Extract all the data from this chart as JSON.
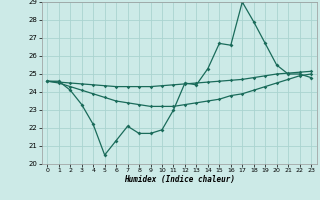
{
  "xlabel": "Humidex (Indice chaleur)",
  "background_color": "#cceae7",
  "grid_color": "#aad4d0",
  "line_color": "#1a6b5a",
  "x_values": [
    0,
    1,
    2,
    3,
    4,
    5,
    6,
    7,
    8,
    9,
    10,
    11,
    12,
    13,
    14,
    15,
    16,
    17,
    18,
    19,
    20,
    21,
    22,
    23
  ],
  "line1_y": [
    24.6,
    24.6,
    24.1,
    23.3,
    22.2,
    20.5,
    21.3,
    22.1,
    21.7,
    21.7,
    21.9,
    23.0,
    24.5,
    24.4,
    25.3,
    26.7,
    26.6,
    29.0,
    27.9,
    26.7,
    25.5,
    25.0,
    25.0,
    24.8
  ],
  "line2_y": [
    24.6,
    24.5,
    24.3,
    24.1,
    23.9,
    23.7,
    23.5,
    23.4,
    23.3,
    23.2,
    23.2,
    23.2,
    23.3,
    23.4,
    23.5,
    23.6,
    23.8,
    23.9,
    24.1,
    24.3,
    24.5,
    24.7,
    24.9,
    25.0
  ],
  "line3_y": [
    24.6,
    24.55,
    24.5,
    24.45,
    24.4,
    24.35,
    24.3,
    24.3,
    24.3,
    24.3,
    24.35,
    24.4,
    24.45,
    24.5,
    24.55,
    24.6,
    24.65,
    24.7,
    24.8,
    24.9,
    25.0,
    25.05,
    25.1,
    25.15
  ],
  "ylim": [
    20,
    29
  ],
  "xlim": [
    -0.5,
    23.5
  ],
  "yticks": [
    20,
    21,
    22,
    23,
    24,
    25,
    26,
    27,
    28,
    29
  ],
  "xticks": [
    0,
    1,
    2,
    3,
    4,
    5,
    6,
    7,
    8,
    9,
    10,
    11,
    12,
    13,
    14,
    15,
    16,
    17,
    18,
    19,
    20,
    21,
    22,
    23
  ]
}
